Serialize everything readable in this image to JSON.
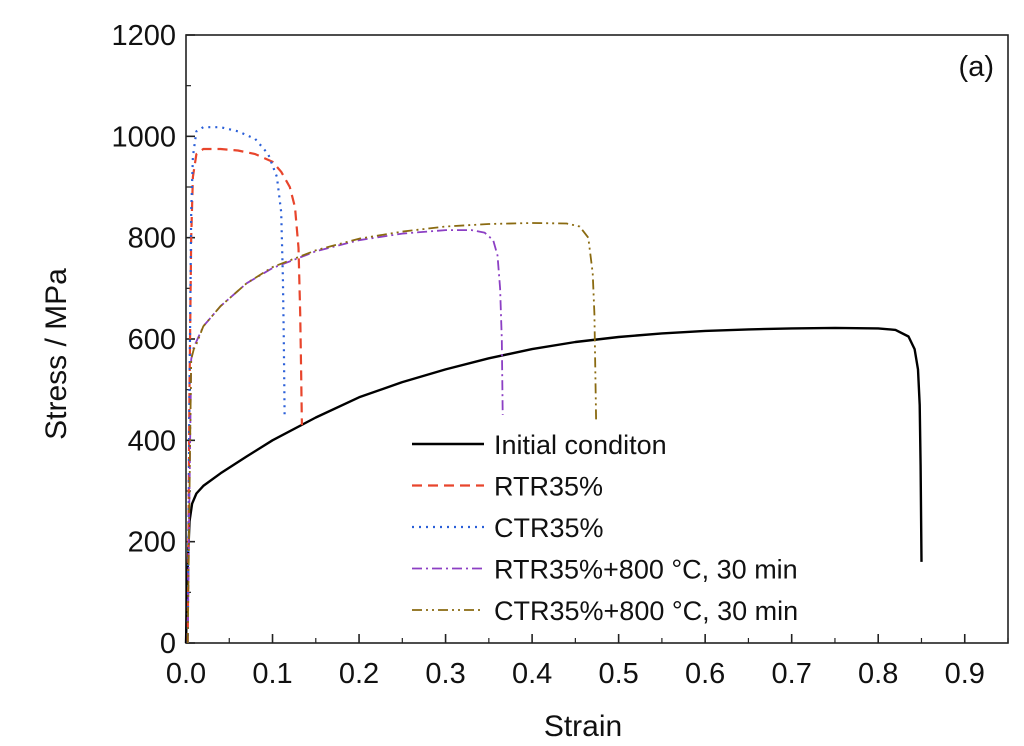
{
  "chart_data": {
    "type": "line",
    "panel_label": "(a)",
    "xlabel": "Strain",
    "ylabel": "Stress / MPa",
    "xlim": [
      0,
      0.95
    ],
    "ylim": [
      0,
      1200
    ],
    "xticks": [
      0.0,
      0.1,
      0.2,
      0.3,
      0.4,
      0.5,
      0.6,
      0.7,
      0.8,
      0.9
    ],
    "xtick_labels": [
      "0.0",
      "0.1",
      "0.2",
      "0.3",
      "0.4",
      "0.5",
      "0.6",
      "0.7",
      "0.8",
      "0.9"
    ],
    "yticks": [
      0,
      200,
      400,
      600,
      800,
      1000,
      1200
    ],
    "ytick_labels": [
      "0",
      "200",
      "400",
      "600",
      "800",
      "1000",
      "1200"
    ],
    "grid": false,
    "legend_position": "bottom-center",
    "series": [
      {
        "name": "Initial conditon",
        "color": "#000000",
        "dash": "solid",
        "points": [
          [
            0.0,
            0
          ],
          [
            0.002,
            150
          ],
          [
            0.004,
            240
          ],
          [
            0.007,
            275
          ],
          [
            0.012,
            295
          ],
          [
            0.02,
            310
          ],
          [
            0.04,
            335
          ],
          [
            0.07,
            368
          ],
          [
            0.1,
            400
          ],
          [
            0.15,
            445
          ],
          [
            0.2,
            485
          ],
          [
            0.25,
            515
          ],
          [
            0.3,
            540
          ],
          [
            0.35,
            562
          ],
          [
            0.4,
            580
          ],
          [
            0.45,
            594
          ],
          [
            0.5,
            604
          ],
          [
            0.55,
            611
          ],
          [
            0.6,
            616
          ],
          [
            0.65,
            619
          ],
          [
            0.7,
            621
          ],
          [
            0.75,
            622
          ],
          [
            0.8,
            621
          ],
          [
            0.82,
            618
          ],
          [
            0.835,
            605
          ],
          [
            0.842,
            580
          ],
          [
            0.846,
            540
          ],
          [
            0.848,
            470
          ],
          [
            0.849,
            350
          ],
          [
            0.85,
            160
          ]
        ]
      },
      {
        "name": "RTR35%",
        "color": "#e8452c",
        "dash": "dashed",
        "points": [
          [
            0.002,
            0
          ],
          [
            0.004,
            500
          ],
          [
            0.006,
            800
          ],
          [
            0.008,
            920
          ],
          [
            0.012,
            965
          ],
          [
            0.02,
            975
          ],
          [
            0.04,
            975
          ],
          [
            0.06,
            972
          ],
          [
            0.08,
            965
          ],
          [
            0.1,
            950
          ],
          [
            0.11,
            930
          ],
          [
            0.12,
            900
          ],
          [
            0.126,
            860
          ],
          [
            0.13,
            780
          ],
          [
            0.132,
            650
          ],
          [
            0.133,
            540
          ],
          [
            0.134,
            430
          ]
        ]
      },
      {
        "name": "CTR35%",
        "color": "#2a5fd8",
        "dash": "dotted",
        "points": [
          [
            0.002,
            0
          ],
          [
            0.004,
            500
          ],
          [
            0.006,
            850
          ],
          [
            0.008,
            960
          ],
          [
            0.012,
            1010
          ],
          [
            0.02,
            1018
          ],
          [
            0.04,
            1018
          ],
          [
            0.06,
            1010
          ],
          [
            0.08,
            995
          ],
          [
            0.095,
            965
          ],
          [
            0.105,
            920
          ],
          [
            0.11,
            850
          ],
          [
            0.112,
            720
          ],
          [
            0.113,
            600
          ],
          [
            0.114,
            450
          ]
        ]
      },
      {
        "name": "RTR35%+800 °C, 30 min",
        "color": "#8c3fc4",
        "dash": "dashdot",
        "points": [
          [
            0.002,
            0
          ],
          [
            0.004,
            300
          ],
          [
            0.006,
            560
          ],
          [
            0.009,
            585
          ],
          [
            0.012,
            595
          ],
          [
            0.02,
            625
          ],
          [
            0.04,
            665
          ],
          [
            0.07,
            710
          ],
          [
            0.1,
            740
          ],
          [
            0.15,
            773
          ],
          [
            0.2,
            795
          ],
          [
            0.25,
            808
          ],
          [
            0.3,
            815
          ],
          [
            0.33,
            815
          ],
          [
            0.345,
            810
          ],
          [
            0.355,
            795
          ],
          [
            0.36,
            765
          ],
          [
            0.363,
            700
          ],
          [
            0.365,
            600
          ],
          [
            0.366,
            450
          ]
        ]
      },
      {
        "name": "CTR35%+800 °C, 30 min",
        "color": "#8a6a10",
        "dash": "dashdotdot",
        "points": [
          [
            0.002,
            0
          ],
          [
            0.004,
            300
          ],
          [
            0.006,
            560
          ],
          [
            0.009,
            580
          ],
          [
            0.012,
            590
          ],
          [
            0.02,
            625
          ],
          [
            0.04,
            665
          ],
          [
            0.07,
            710
          ],
          [
            0.1,
            742
          ],
          [
            0.15,
            775
          ],
          [
            0.2,
            798
          ],
          [
            0.25,
            812
          ],
          [
            0.3,
            822
          ],
          [
            0.35,
            827
          ],
          [
            0.4,
            829
          ],
          [
            0.44,
            828
          ],
          [
            0.455,
            822
          ],
          [
            0.465,
            800
          ],
          [
            0.47,
            730
          ],
          [
            0.472,
            650
          ],
          [
            0.473,
            540
          ],
          [
            0.474,
            440
          ]
        ]
      }
    ]
  }
}
